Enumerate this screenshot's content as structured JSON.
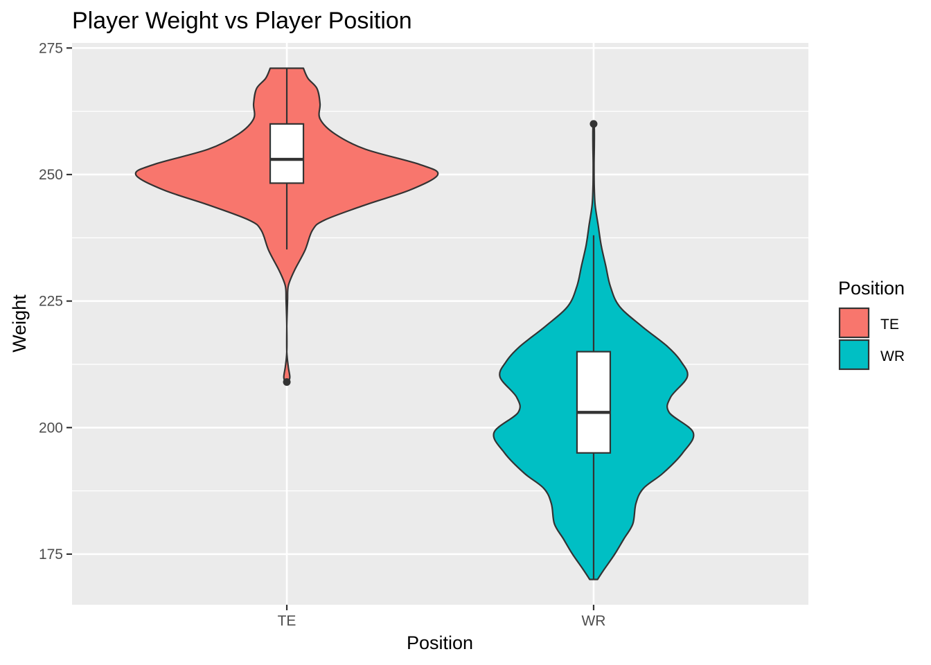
{
  "chart_data": {
    "type": "violin",
    "title": "Player Weight vs Player Position",
    "xlabel": "Position",
    "ylabel": "Weight",
    "categories": [
      "TE",
      "WR"
    ],
    "ylim": [
      165,
      276
    ],
    "y_ticks": [
      175,
      200,
      225,
      250,
      275
    ],
    "y_tick_labels": [
      "175",
      "200",
      "225",
      "250",
      "275"
    ],
    "grid": true,
    "legend": {
      "title": "Position",
      "position": "right",
      "entries": [
        {
          "label": "TE",
          "color": "#F8766D"
        },
        {
          "label": "WR",
          "color": "#00BFC4"
        }
      ]
    },
    "series": [
      {
        "category": "TE",
        "color": "#F8766D",
        "min": 209,
        "max": 271,
        "boxplot": {
          "q1": 248.3,
          "median": 253,
          "q3": 260,
          "whisker_low": 235.2,
          "whisker_high": 271,
          "outliers": [
            209
          ]
        },
        "density_profile": [
          {
            "y": 209,
            "w": 0.01
          },
          {
            "y": 210,
            "w": 0.02
          },
          {
            "y": 212,
            "w": 0.01
          },
          {
            "y": 215,
            "w": 0.0
          },
          {
            "y": 220,
            "w": 0.0
          },
          {
            "y": 225,
            "w": 0.005
          },
          {
            "y": 228,
            "w": 0.01
          },
          {
            "y": 231,
            "w": 0.05
          },
          {
            "y": 235,
            "w": 0.12
          },
          {
            "y": 239,
            "w": 0.17
          },
          {
            "y": 241,
            "w": 0.25
          },
          {
            "y": 244,
            "w": 0.52
          },
          {
            "y": 247,
            "w": 0.82
          },
          {
            "y": 250,
            "w": 1.0
          },
          {
            "y": 252,
            "w": 0.88
          },
          {
            "y": 255,
            "w": 0.52
          },
          {
            "y": 258,
            "w": 0.32
          },
          {
            "y": 261,
            "w": 0.22
          },
          {
            "y": 264,
            "w": 0.22
          },
          {
            "y": 267,
            "w": 0.2
          },
          {
            "y": 269,
            "w": 0.14
          },
          {
            "y": 271,
            "w": 0.11
          }
        ]
      },
      {
        "category": "WR",
        "color": "#00BFC4",
        "min": 170,
        "max": 260,
        "boxplot": {
          "q1": 195,
          "median": 203,
          "q3": 215,
          "whisker_low": 170,
          "whisker_high": 238,
          "outliers": [
            260
          ]
        },
        "density_profile": [
          {
            "y": 170,
            "w": 0.026
          },
          {
            "y": 172,
            "w": 0.07
          },
          {
            "y": 175,
            "w": 0.14
          },
          {
            "y": 178,
            "w": 0.2
          },
          {
            "y": 181,
            "w": 0.26
          },
          {
            "y": 185,
            "w": 0.28
          },
          {
            "y": 188,
            "w": 0.33
          },
          {
            "y": 191,
            "w": 0.46
          },
          {
            "y": 195,
            "w": 0.59
          },
          {
            "y": 199,
            "w": 0.66
          },
          {
            "y": 203,
            "w": 0.5
          },
          {
            "y": 206,
            "w": 0.51
          },
          {
            "y": 210,
            "w": 0.62
          },
          {
            "y": 213,
            "w": 0.58
          },
          {
            "y": 216,
            "w": 0.49
          },
          {
            "y": 220,
            "w": 0.32
          },
          {
            "y": 224,
            "w": 0.17
          },
          {
            "y": 228,
            "w": 0.11
          },
          {
            "y": 232,
            "w": 0.08
          },
          {
            "y": 236,
            "w": 0.05
          },
          {
            "y": 240,
            "w": 0.03
          },
          {
            "y": 244,
            "w": 0.01
          },
          {
            "y": 248,
            "w": 0.004
          },
          {
            "y": 252,
            "w": 0.003
          },
          {
            "y": 256,
            "w": 0.005
          },
          {
            "y": 259,
            "w": 0.005
          },
          {
            "y": 260,
            "w": 0.003
          }
        ]
      }
    ]
  }
}
